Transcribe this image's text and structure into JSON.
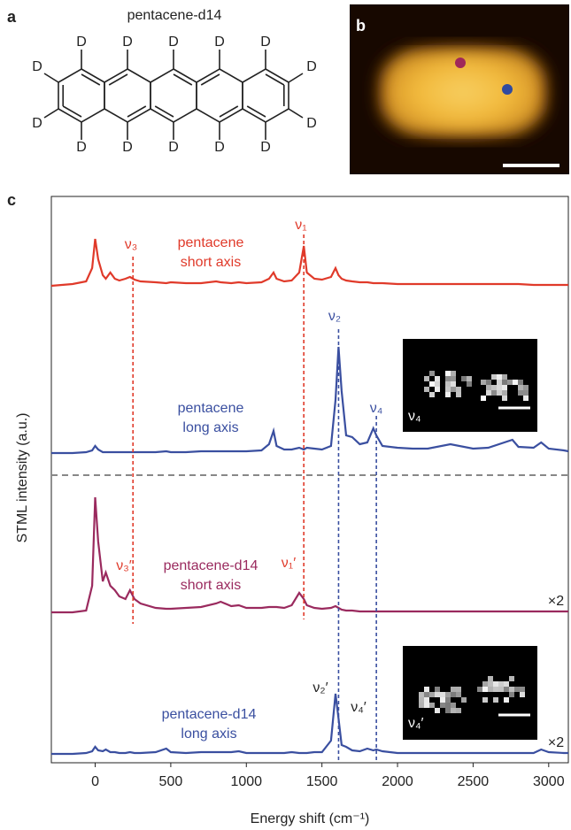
{
  "panels": [
    "a",
    "b",
    "c"
  ],
  "structure": {
    "title": "pentacene-d14",
    "atoms": [
      "D",
      "D",
      "D",
      "D",
      "D",
      "D",
      "D",
      "D",
      "D",
      "D",
      "D",
      "D",
      "D",
      "D"
    ]
  },
  "insets": [
    "ν₄",
    "ν₄′"
  ],
  "chart_data": {
    "type": "line",
    "xlabel": "Energy shift (cm⁻¹)",
    "ylabel": "STML intensity (a.u.)",
    "xlim": [
      -290,
      3130
    ],
    "xticks": [
      0,
      500,
      1000,
      1500,
      2000,
      2500,
      3000
    ],
    "x": [
      -290,
      -150,
      -60,
      -20,
      0,
      20,
      50,
      70,
      100,
      130,
      160,
      200,
      230,
      260,
      300,
      400,
      470,
      500,
      600,
      700,
      800,
      830,
      900,
      950,
      1000,
      1100,
      1150,
      1180,
      1200,
      1250,
      1300,
      1350,
      1380,
      1400,
      1450,
      1500,
      1560,
      1590,
      1610,
      1630,
      1660,
      1700,
      1750,
      1800,
      1840,
      1860,
      1900,
      2000,
      2100,
      2200,
      2350,
      2500,
      2600,
      2760,
      2800,
      2900,
      2950,
      3000,
      3100,
      3130
    ],
    "series": [
      {
        "name": "pentacene short axis",
        "color": "#e03a2a",
        "values": [
          0,
          2,
          5,
          20,
          53,
          30,
          12,
          8,
          15,
          8,
          6,
          8,
          10,
          7,
          5,
          4,
          3,
          4,
          3,
          3,
          5,
          4,
          3,
          4,
          3,
          4,
          8,
          15,
          8,
          5,
          6,
          15,
          45,
          15,
          8,
          7,
          10,
          20,
          12,
          8,
          6,
          5,
          4,
          4,
          3,
          3,
          3,
          2,
          2,
          2,
          2,
          2,
          2,
          2,
          2,
          1,
          1,
          1,
          1,
          1
        ]
      },
      {
        "name": "pentacene long axis",
        "color": "#3a4fa0",
        "values": [
          0,
          0,
          1,
          3,
          8,
          4,
          1,
          1,
          1,
          1,
          1,
          1,
          1,
          1,
          1,
          1,
          2,
          1,
          1,
          2,
          2,
          2,
          2,
          2,
          2,
          3,
          10,
          25,
          8,
          4,
          4,
          6,
          4,
          6,
          5,
          4,
          8,
          60,
          120,
          70,
          20,
          18,
          10,
          12,
          28,
          20,
          8,
          6,
          5,
          5,
          10,
          5,
          6,
          15,
          7,
          6,
          12,
          5,
          3,
          2
        ]
      },
      {
        "name": "pentacene-d14 short axis",
        "color": "#9a2a5e",
        "scale": "×2",
        "values": [
          0,
          0,
          2,
          30,
          130,
          80,
          35,
          45,
          30,
          25,
          18,
          15,
          25,
          15,
          10,
          5,
          4,
          4,
          5,
          6,
          10,
          12,
          7,
          8,
          5,
          5,
          6,
          6,
          6,
          5,
          8,
          22,
          15,
          8,
          5,
          4,
          5,
          7,
          5,
          3,
          2,
          2,
          1,
          1,
          1,
          1,
          1,
          1,
          1,
          1,
          1,
          1,
          1,
          1,
          1,
          1,
          1,
          1,
          1,
          1
        ]
      },
      {
        "name": "pentacene-d14 long axis",
        "color": "#3a4fa0",
        "scale": "×2",
        "values": [
          0,
          0,
          1,
          3,
          8,
          4,
          3,
          5,
          2,
          2,
          1,
          1,
          2,
          1,
          1,
          2,
          6,
          2,
          1,
          2,
          2,
          2,
          2,
          3,
          1,
          1,
          1,
          1,
          1,
          1,
          2,
          1,
          1,
          1,
          2,
          2,
          15,
          68,
          40,
          10,
          8,
          4,
          3,
          6,
          4,
          5,
          3,
          1,
          1,
          1,
          1,
          1,
          1,
          1,
          1,
          1,
          5,
          2,
          1,
          1
        ]
      }
    ],
    "modes": [
      {
        "label": "ν₃",
        "label_d14": "ν₃′",
        "x": 250,
        "color": "#e03a2a"
      },
      {
        "label": "ν₁",
        "label_d14": "ν₁′",
        "x": 1380,
        "color": "#e03a2a"
      },
      {
        "label": "ν₂",
        "label_d14": "ν₂′",
        "x": 1610,
        "color": "#3a4fa0"
      },
      {
        "label": "ν₄",
        "label_d14": "ν₄′",
        "x": 1860,
        "color": "#3a4fa0"
      }
    ]
  }
}
